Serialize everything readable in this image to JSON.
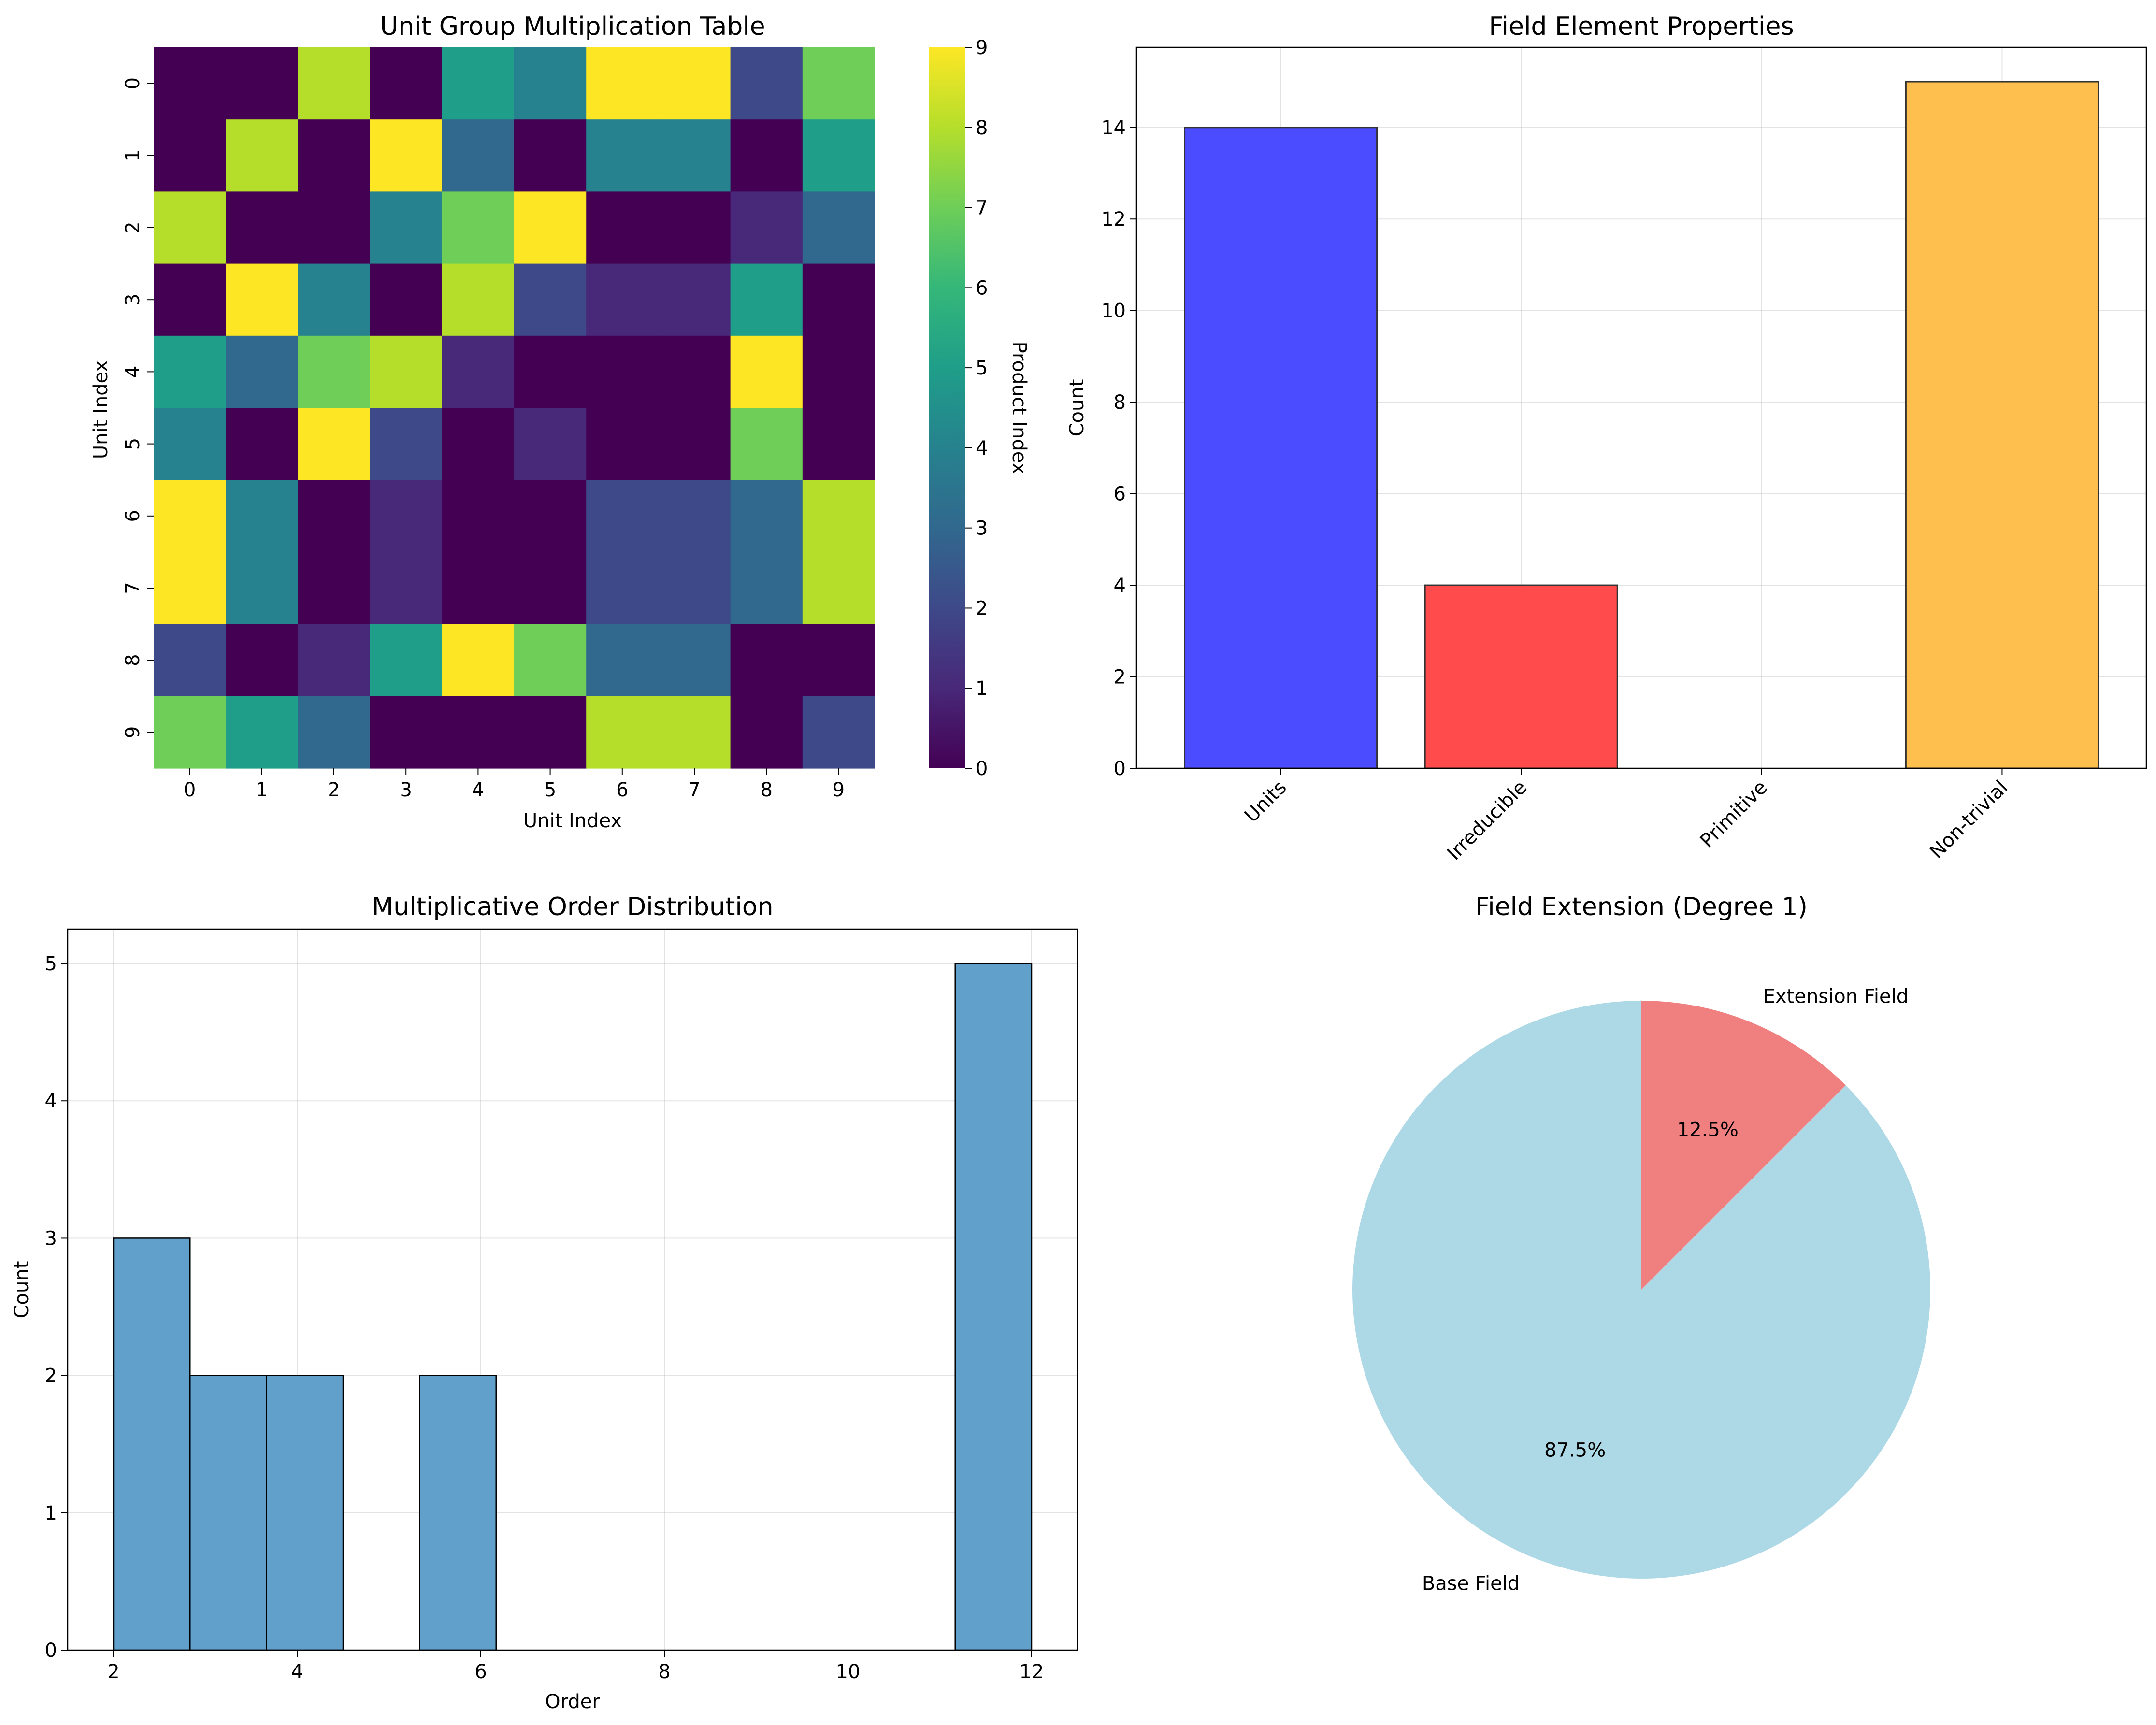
{
  "chart_data": [
    {
      "type": "heatmap",
      "title": "Unit Group Multiplication Table",
      "xlabel": "Unit Index",
      "ylabel": "Unit Index",
      "x_ticks": [
        "0",
        "1",
        "2",
        "3",
        "4",
        "5",
        "6",
        "7",
        "8",
        "9"
      ],
      "y_ticks": [
        "0",
        "1",
        "2",
        "3",
        "4",
        "5",
        "6",
        "7",
        "8",
        "9"
      ],
      "matrix": [
        [
          0,
          0,
          8,
          0,
          5,
          4,
          9,
          9,
          2,
          7
        ],
        [
          0,
          8,
          0,
          9,
          3,
          0,
          4,
          4,
          0,
          5
        ],
        [
          8,
          0,
          0,
          4,
          7,
          9,
          0,
          0,
          1,
          3
        ],
        [
          0,
          9,
          4,
          0,
          8,
          2,
          1,
          1,
          5,
          0
        ],
        [
          5,
          3,
          7,
          8,
          1,
          0,
          0,
          0,
          9,
          0
        ],
        [
          4,
          0,
          9,
          2,
          0,
          1,
          0,
          0,
          7,
          0
        ],
        [
          9,
          4,
          0,
          1,
          0,
          0,
          2,
          2,
          3,
          8
        ],
        [
          9,
          4,
          0,
          1,
          0,
          0,
          2,
          2,
          3,
          8
        ],
        [
          2,
          0,
          1,
          5,
          9,
          7,
          3,
          3,
          0,
          0
        ],
        [
          7,
          5,
          3,
          0,
          0,
          0,
          8,
          8,
          0,
          2
        ]
      ],
      "colorbar": {
        "label": "Product Index",
        "vmin": 0,
        "vmax": 9,
        "ticks": [
          "0",
          "1",
          "2",
          "3",
          "4",
          "5",
          "6",
          "7",
          "8",
          "9"
        ],
        "colormap": "viridis"
      }
    },
    {
      "type": "bar",
      "title": "Field Element Properties",
      "xlabel": "",
      "ylabel": "Count",
      "categories": [
        "Units",
        "Irreducible",
        "Primitive",
        "Non-trivial"
      ],
      "values": [
        14,
        4,
        0,
        15
      ],
      "colors": [
        "#4b4bff",
        "#ff4b4b",
        "#4bb34b",
        "#ffbf4f"
      ],
      "ylim": [
        0,
        15.75
      ],
      "yticks": [
        0,
        2,
        4,
        6,
        8,
        10,
        12,
        14
      ],
      "grid": true
    },
    {
      "type": "bar",
      "subtype": "histogram",
      "title": "Multiplicative Order Distribution",
      "xlabel": "Order",
      "ylabel": "Count",
      "bins": [
        {
          "start": 2.0,
          "end": 2.833,
          "count": 3
        },
        {
          "start": 2.833,
          "end": 3.667,
          "count": 2
        },
        {
          "start": 3.667,
          "end": 4.5,
          "count": 2
        },
        {
          "start": 4.5,
          "end": 5.333,
          "count": 0
        },
        {
          "start": 5.333,
          "end": 6.167,
          "count": 2
        },
        {
          "start": 6.167,
          "end": 7.0,
          "count": 0
        },
        {
          "start": 7.0,
          "end": 7.833,
          "count": 0
        },
        {
          "start": 7.833,
          "end": 8.667,
          "count": 0
        },
        {
          "start": 8.667,
          "end": 9.5,
          "count": 0
        },
        {
          "start": 9.5,
          "end": 10.333,
          "count": 0
        },
        {
          "start": 10.333,
          "end": 11.167,
          "count": 0
        },
        {
          "start": 11.167,
          "end": 12.0,
          "count": 5
        }
      ],
      "bar_color": "#62a0cc",
      "xlim": [
        1.5,
        12.5
      ],
      "ylim": [
        0,
        5.25
      ],
      "xticks": [
        2,
        4,
        6,
        8,
        10,
        12
      ],
      "yticks": [
        0,
        1,
        2,
        3,
        4,
        5
      ],
      "grid": true
    },
    {
      "type": "pie",
      "title": "Field Extension (Degree 1)",
      "slices": [
        {
          "label": "Extension Field",
          "value": 12.5,
          "pct_label": "12.5%",
          "color": "#f08080"
        },
        {
          "label": "Base Field",
          "value": 87.5,
          "pct_label": "87.5%",
          "color": "#add8e6"
        }
      ],
      "start_angle_deg": 90,
      "direction": "clockwise"
    }
  ]
}
